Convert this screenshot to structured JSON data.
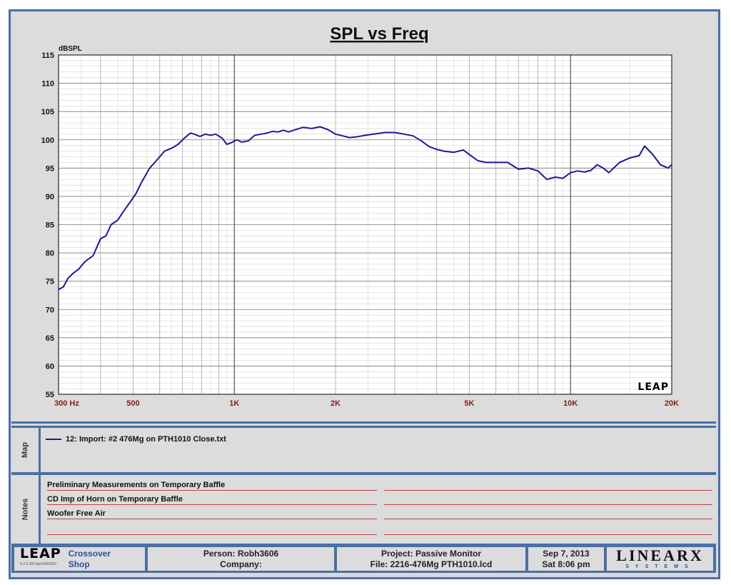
{
  "chart_data": {
    "type": "line",
    "title": "SPL vs Freq",
    "ylabel": "dBSPL",
    "xlabel": "",
    "xscale": "log",
    "xlim": [
      300,
      20000
    ],
    "ylim": [
      55,
      115
    ],
    "grid": true,
    "y_ticks": [
      55,
      60,
      65,
      70,
      75,
      80,
      85,
      90,
      95,
      100,
      105,
      110,
      115
    ],
    "x_tick_labels": [
      {
        "value": 300,
        "label": "300  Hz"
      },
      {
        "value": 500,
        "label": "500"
      },
      {
        "value": 1000,
        "label": "1K"
      },
      {
        "value": 2000,
        "label": "2K"
      },
      {
        "value": 5000,
        "label": "5K"
      },
      {
        "value": 10000,
        "label": "10K"
      },
      {
        "value": 20000,
        "label": "20K"
      }
    ],
    "watermark": "LEAP",
    "series": [
      {
        "name": "12: Import: #2 476Mg on PTH1010 Close.txt",
        "color": "#1a1a9a",
        "x": [
          300,
          310,
          320,
          330,
          345,
          360,
          380,
          400,
          415,
          430,
          450,
          470,
          490,
          510,
          530,
          560,
          590,
          620,
          650,
          680,
          710,
          740,
          760,
          790,
          820,
          850,
          880,
          920,
          950,
          980,
          1000,
          1020,
          1050,
          1100,
          1150,
          1200,
          1250,
          1300,
          1350,
          1400,
          1450,
          1500,
          1600,
          1700,
          1800,
          1900,
          2000,
          2100,
          2200,
          2300,
          2450,
          2600,
          2800,
          3000,
          3200,
          3400,
          3600,
          3800,
          4000,
          4200,
          4500,
          4800,
          5000,
          5300,
          5600,
          6000,
          6500,
          7000,
          7500,
          8000,
          8500,
          9000,
          9500,
          10000,
          10500,
          11000,
          11500,
          12000,
          12500,
          13000,
          14000,
          15000,
          16000,
          16600,
          17500,
          18500,
          19500,
          20000
        ],
        "y": [
          73.5,
          74.0,
          75.5,
          76.3,
          77.2,
          78.5,
          79.5,
          82.5,
          83.0,
          85.0,
          85.8,
          87.5,
          89.0,
          90.5,
          92.5,
          95.0,
          96.5,
          98.0,
          98.5,
          99.2,
          100.3,
          101.2,
          101.0,
          100.6,
          101.0,
          100.8,
          101.0,
          100.3,
          99.2,
          99.5,
          99.8,
          100.0,
          99.6,
          99.8,
          100.8,
          101.0,
          101.2,
          101.5,
          101.4,
          101.7,
          101.4,
          101.7,
          102.2,
          102.0,
          102.3,
          101.8,
          101.0,
          100.7,
          100.4,
          100.5,
          100.8,
          101.0,
          101.3,
          101.3,
          101.0,
          100.7,
          99.8,
          98.8,
          98.3,
          98.0,
          97.8,
          98.2,
          97.4,
          96.3,
          96.0,
          96.0,
          96.0,
          94.8,
          95.0,
          94.5,
          93.0,
          93.4,
          93.2,
          94.2,
          94.5,
          94.3,
          94.6,
          95.6,
          95.0,
          94.2,
          96.0,
          96.8,
          97.2,
          98.9,
          97.5,
          95.6,
          95.0,
          95.6
        ]
      }
    ]
  },
  "map": {
    "label": "Map",
    "entry": "12: Import: #2 476Mg on PTH1010 Close.txt"
  },
  "notes": {
    "label": "Notes",
    "lines": [
      "Preliminary Measurements on Temporary Baffle",
      "CD Imp of Horn on Temporary Baffle",
      "Woofer Free Air",
      ""
    ]
  },
  "footer": {
    "logo": "LEAP",
    "version": "5.2.0.350    April/28/2007",
    "crossover": "Crossover",
    "shop": "Shop",
    "person": "Person: Robh3606",
    "company": "Company:",
    "project": "Project: Passive Monitor",
    "file": "File: 2216-476Mg PTH1010.lcd",
    "date": "Sep  7, 2013",
    "time": "Sat  8:06 pm",
    "brand": "LINEARX",
    "brand_sub": "SYSTEMS"
  },
  "colors": {
    "border": "#4a6fa5",
    "trace": "#1a1a9a",
    "x_tick_label": "#8b1a1a",
    "note_line": "#c04040"
  }
}
